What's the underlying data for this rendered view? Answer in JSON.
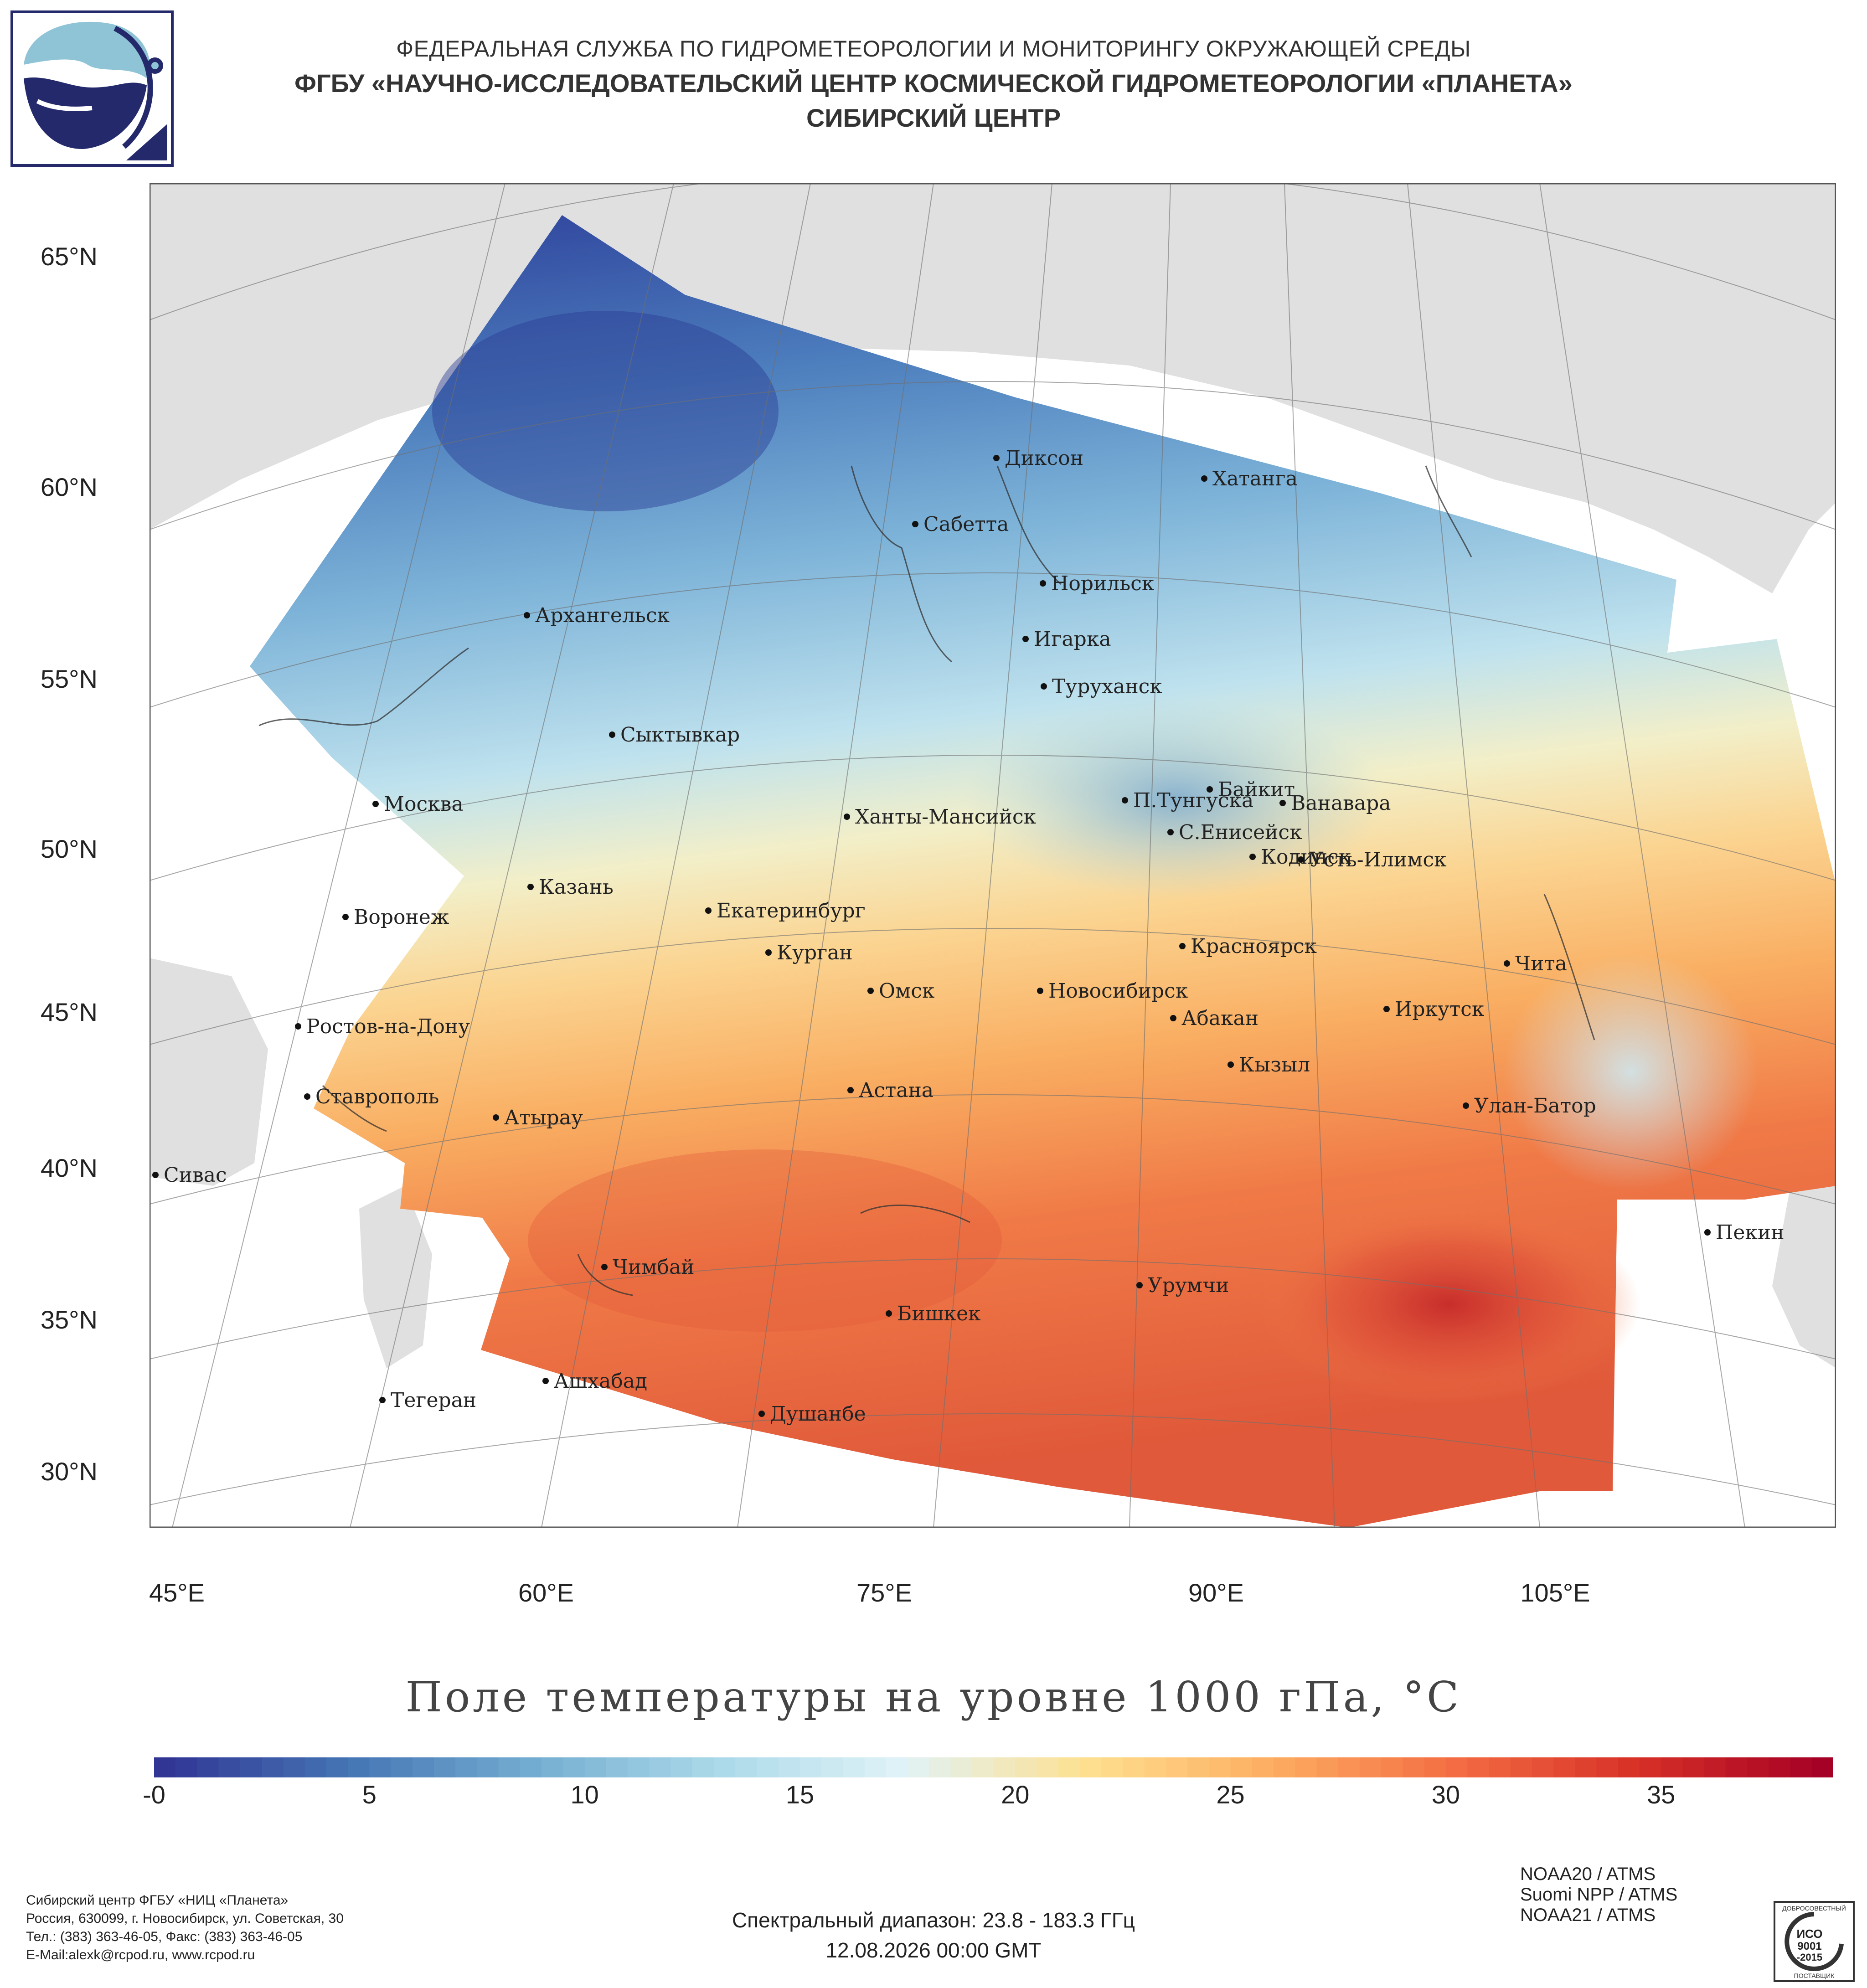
{
  "header": {
    "line1": "ФЕДЕРАЛЬНАЯ СЛУЖБА ПО ГИДРОМЕТЕОРОЛОГИИ И МОНИТОРИНГУ ОКРУЖАЮЩЕЙ СРЕДЫ",
    "line2": "ФГБУ «НАУЧНО-ИССЛЕДОВАТЕЛЬСКИЙ ЦЕНТР КОСМИЧЕСКОЙ ГИДРОМЕТЕОРОЛОГИИ «ПЛАНЕТА»",
    "line3": "СИБИРСКИЙ ЦЕНТР"
  },
  "map": {
    "lat_labels": [
      "65°N",
      "60°N",
      "55°N",
      "50°N",
      "45°N",
      "40°N",
      "35°N",
      "30°N"
    ],
    "lon_labels": [
      "45°E",
      "60°E",
      "75°E",
      "90°E",
      "105°E"
    ],
    "cities": [
      {
        "name": "Диксон"
      },
      {
        "name": "Хатанга"
      },
      {
        "name": "Сабетта"
      },
      {
        "name": "Норильск"
      },
      {
        "name": "Архангельск"
      },
      {
        "name": "Игарка"
      },
      {
        "name": "Туруханск"
      },
      {
        "name": "Сыктывкар"
      },
      {
        "name": "Байкит"
      },
      {
        "name": "Москва"
      },
      {
        "name": "Ханты-Мансийск"
      },
      {
        "name": "П.Тунгуска"
      },
      {
        "name": "Ванавара"
      },
      {
        "name": "С.Енисейск"
      },
      {
        "name": "Кодинск"
      },
      {
        "name": "Усть-Илимск"
      },
      {
        "name": "Казань"
      },
      {
        "name": "Воронеж"
      },
      {
        "name": "Екатеринбург"
      },
      {
        "name": "Красноярск"
      },
      {
        "name": "Курган"
      },
      {
        "name": "Чита"
      },
      {
        "name": "Омск"
      },
      {
        "name": "Новосибирск"
      },
      {
        "name": "Иркутск"
      },
      {
        "name": "Абакан"
      },
      {
        "name": "Ростов-на-Дону"
      },
      {
        "name": "Кызыл"
      },
      {
        "name": "Астана"
      },
      {
        "name": "Ставрополь"
      },
      {
        "name": "Улан-Батор"
      },
      {
        "name": "Атырау"
      },
      {
        "name": "Сивас"
      },
      {
        "name": "Пекин"
      },
      {
        "name": "Чимбай"
      },
      {
        "name": "Урумчи"
      },
      {
        "name": "Бишкек"
      },
      {
        "name": "Ашхабад"
      },
      {
        "name": "Тегеран"
      },
      {
        "name": "Душанбе"
      }
    ]
  },
  "title": "Поле температуры на уровне 1000 гПа, °С",
  "colorbar": {
    "min": 0,
    "max": 39,
    "labels": [
      "-0",
      "5",
      "10",
      "15",
      "20",
      "25",
      "30",
      "35"
    ],
    "label_values": [
      0,
      5,
      10,
      15,
      20,
      25,
      30,
      35
    ],
    "colors": [
      "#313695",
      "#4575b4",
      "#74add1",
      "#abd9e9",
      "#e0f3f8",
      "#fee090",
      "#fdae61",
      "#f46d43",
      "#d73027",
      "#a50026"
    ]
  },
  "footer": {
    "org_lines": [
      "Сибирский центр ФГБУ «НИЦ «Планета»",
      "Россия, 630099, г. Новосибирск, ул. Советская, 30",
      "Тел.: (383) 363-46-05, Факс: (383) 363-46-05",
      "E-Mail:alexk@rcpod.ru, www.rcpod.ru"
    ],
    "spectral": "Спектральный диапазон: 23.8 - 183.3 ГГц",
    "datetime": "12.08.2026 00:00 GMT",
    "satellites": [
      "NOAA20 / ATMS",
      "Suomi NPP / ATMS",
      "NOAA21 / ATMS"
    ],
    "iso_text": [
      "ДОБРОСОВЕСТНЫЙ",
      "ИСО",
      "9001",
      "-2015",
      "ПОСТАВЩИК"
    ]
  }
}
